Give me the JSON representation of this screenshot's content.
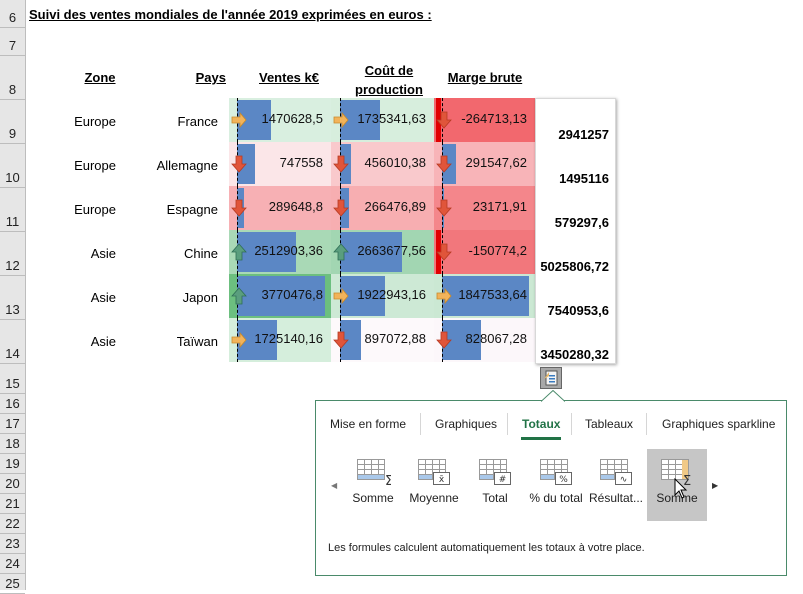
{
  "row_numbers": [
    "6",
    "7",
    "8",
    "9",
    "10",
    "11",
    "12",
    "13",
    "14",
    "15",
    "16",
    "17",
    "18",
    "19",
    "20",
    "21",
    "22",
    "23",
    "24",
    "25"
  ],
  "title": "Suivi des ventes mondiales de l'année 2019 exprimées en euros :",
  "headers": {
    "zone": "Zone",
    "pays": "Pays",
    "ventes": "Ventes k€",
    "cout_line1": "Coût de",
    "cout_line2": "production",
    "marge": "Marge brute"
  },
  "rows": [
    {
      "zone": "Europe",
      "pays": "France",
      "ventes": "1470628,5",
      "cout": "1735341,63",
      "marge": "-264713,13",
      "total": "2941257"
    },
    {
      "zone": "Europe",
      "pays": "Allemagne",
      "ventes": "747558",
      "cout": "456010,38",
      "marge": "291547,62",
      "total": "1495116"
    },
    {
      "zone": "Europe",
      "pays": "Espagne",
      "ventes": "289648,8",
      "cout": "266476,89",
      "marge": "23171,91",
      "total": "579297,6"
    },
    {
      "zone": "Asie",
      "pays": "Chine",
      "ventes": "2512903,36",
      "cout": "2663677,56",
      "marge": "-150774,2",
      "total": "5025806,72"
    },
    {
      "zone": "Asie",
      "pays": "Japon",
      "ventes": "3770476,8",
      "cout": "1922943,16",
      "marge": "1847533,64",
      "total": "7540953,6"
    },
    {
      "zone": "Asie",
      "pays": "Taïwan",
      "ventes": "1725140,16",
      "cout": "897072,88",
      "marge": "828067,28",
      "total": "3450280,32"
    }
  ],
  "cell_formats": {
    "ventes": {
      "bg": [
        "#d9efe0",
        "#fbe6e8",
        "#f7b0b4",
        "#a9d9b6",
        "#6cbf7f",
        "#d5eedc"
      ],
      "icon": [
        "right",
        "down",
        "down",
        "up",
        "up",
        "right"
      ],
      "bar": [
        0.39,
        0.2,
        0.08,
        0.67,
        1.0,
        0.46
      ]
    },
    "cout": {
      "bg": [
        "#d7eedd",
        "#f9c9cc",
        "#f7aeb1",
        "#a2d6b2",
        "#cde9d5",
        "#fdf9fb"
      ],
      "icon": [
        "right",
        "down",
        "down",
        "up",
        "right",
        "down"
      ],
      "bar": [
        0.46,
        0.12,
        0.1,
        0.71,
        0.51,
        0.24
      ]
    },
    "marge": {
      "bg": [
        "#f2686e",
        "#f8b4b8",
        "#f4868b",
        "#f2777c",
        "#cbe8d3",
        "#fcf7fa"
      ],
      "icon": [
        "down",
        "down",
        "down",
        "down",
        "right",
        "down"
      ],
      "bar": [
        -0.14,
        0.16,
        0.01,
        -0.08,
        1.0,
        0.45
      ]
    }
  },
  "colors": {
    "accent": "#217346",
    "bar": "#5b87c5",
    "negative_bar": "#e00000",
    "arrow_up": "#5a9e7e",
    "arrow_right": "#f2b35a",
    "arrow_down": "#e0553a"
  },
  "quick_analysis": {
    "button_icon": "quick-analysis-icon",
    "tabs": [
      {
        "label": "Mise en forme",
        "active": false
      },
      {
        "label": "Graphiques",
        "active": false
      },
      {
        "label": "Totaux",
        "active": true
      },
      {
        "label": "Tableaux",
        "active": false
      },
      {
        "label": "Graphiques sparkline",
        "active": false
      }
    ],
    "options": [
      {
        "label": "Somme",
        "icon": "sum-row-icon",
        "selected": false
      },
      {
        "label": "Moyenne",
        "icon": "average-row-icon",
        "selected": false
      },
      {
        "label": "Total",
        "icon": "count-row-icon",
        "selected": false
      },
      {
        "label": "% du total",
        "icon": "percent-total-icon",
        "selected": false
      },
      {
        "label": "Résultat...",
        "icon": "running-total-icon",
        "selected": false
      },
      {
        "label": "Somme",
        "icon": "sum-column-icon",
        "selected": true
      }
    ],
    "description": "Les formules calculent automatiquement les totaux à votre place."
  }
}
